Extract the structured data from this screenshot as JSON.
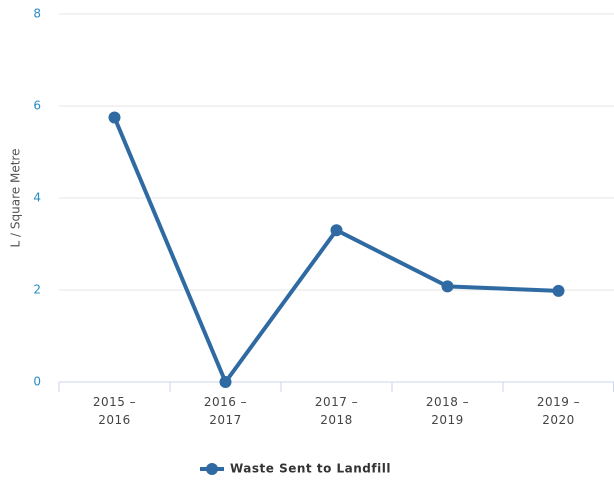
{
  "chart_data": {
    "type": "line",
    "y_axis_label": "L / Square Metre",
    "categories": [
      "2015 – 2016",
      "2016 – 2017",
      "2017 – 2018",
      "2018 – 2019",
      "2019 – 2020"
    ],
    "series": [
      {
        "name": "Waste Sent to Landfill",
        "color": "#2f6aa3",
        "values": [
          5.75,
          0,
          3.3,
          2.08,
          1.98
        ]
      }
    ],
    "ylim": [
      0,
      8
    ],
    "yticks": [
      0,
      2,
      4,
      6,
      8
    ],
    "grid": true,
    "legend": "bottom"
  }
}
